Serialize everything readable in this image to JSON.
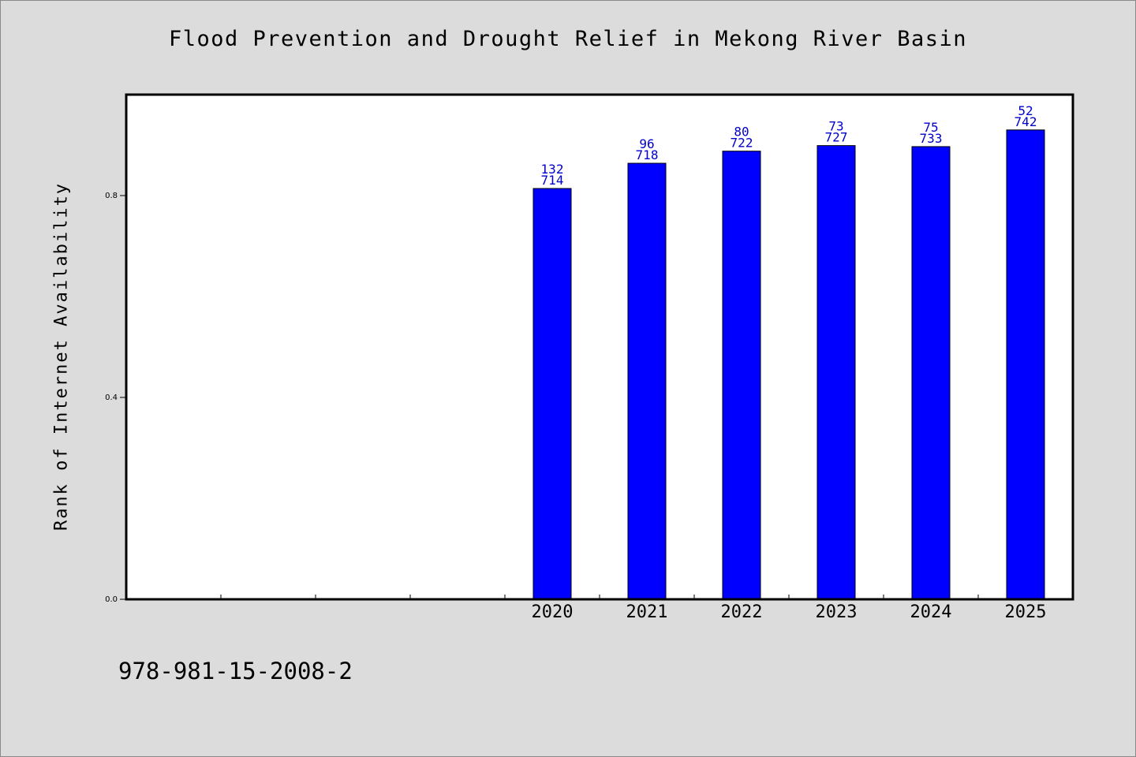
{
  "chart_data": {
    "type": "bar",
    "title": "Flood Prevention and Drought Relief in Mekong River Basin",
    "ylabel": "Rank of Internet Availability",
    "xlabel": "",
    "categories": [
      "",
      "",
      "",
      "",
      "2020",
      "2021",
      "2022",
      "2023",
      "2024",
      "2025"
    ],
    "values": [
      null,
      null,
      null,
      null,
      0.814,
      0.864,
      0.888,
      0.899,
      0.897,
      0.93
    ],
    "annotations": [
      null,
      null,
      null,
      null,
      [
        "132",
        "714"
      ],
      [
        "96",
        "718"
      ],
      [
        "80",
        "722"
      ],
      [
        "73",
        "727"
      ],
      [
        "75",
        "733"
      ],
      [
        "52",
        "742"
      ]
    ],
    "yticks": [
      0.0,
      0.4,
      0.8
    ],
    "ytick_labels": [
      "0.0",
      "0.4",
      "0.8"
    ],
    "ylim": [
      0,
      1.0
    ],
    "grid": false,
    "legend": "none",
    "bar_color": "#0000ff",
    "annotation_color": "#0000cc",
    "plot_background": "#ffffff",
    "page_background": "#dcdcdc"
  },
  "footer": {
    "isbn": "978-981-15-2008-2"
  }
}
